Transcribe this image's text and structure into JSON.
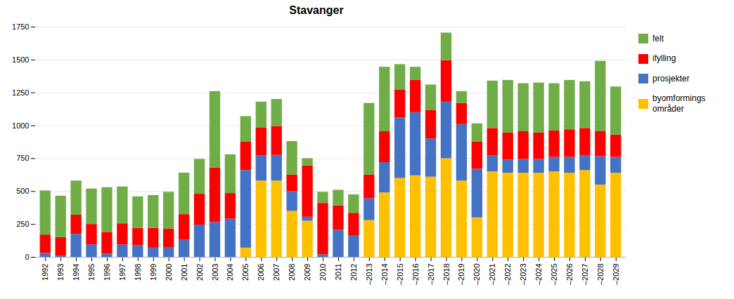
{
  "chart_data": {
    "type": "bar",
    "title": "Stavanger",
    "stacked": true,
    "grid": true,
    "legend": "right",
    "categories": [
      "1992",
      "1993",
      "1994",
      "1995",
      "1996",
      "1997",
      "1998",
      "1999",
      "2000",
      "2001",
      "2002",
      "2003",
      "2004",
      "2005",
      "2006",
      "2007",
      "2008",
      "2009",
      "2010",
      "2011",
      "2012",
      "‒2013",
      "‒2014",
      "‒2015",
      "‒2016",
      "‒2017",
      "‒2018",
      "‒2019",
      "‒2020",
      "‒2021",
      "‒2022",
      "‒2023",
      "‒2024",
      "‒2025",
      "‒2026",
      "‒2027",
      "‒2028",
      "‒2029"
    ],
    "series": [
      {
        "name": "byomformings\nområder",
        "color": "#FFC000",
        "values": [
          0,
          0,
          0,
          0,
          0,
          0,
          0,
          0,
          0,
          0,
          0,
          0,
          0,
          70,
          580,
          580,
          350,
          275,
          0,
          0,
          0,
          280,
          490,
          600,
          620,
          610,
          750,
          580,
          300,
          650,
          640,
          640,
          640,
          650,
          640,
          660,
          550,
          640
        ]
      },
      {
        "name": "prosjekter",
        "color": "#4472C4",
        "values": [
          30,
          10,
          175,
          95,
          25,
          95,
          90,
          70,
          75,
          130,
          245,
          265,
          290,
          590,
          190,
          195,
          150,
          30,
          20,
          205,
          165,
          165,
          230,
          460,
          480,
          290,
          430,
          430,
          370,
          120,
          100,
          105,
          105,
          110,
          120,
          110,
          215,
          120
        ]
      },
      {
        "name": "ifylling",
        "color": "#FF0000",
        "values": [
          140,
          140,
          145,
          155,
          165,
          160,
          130,
          150,
          140,
          195,
          235,
          415,
          195,
          215,
          215,
          220,
          125,
          390,
          390,
          185,
          170,
          180,
          235,
          210,
          245,
          215,
          315,
          160,
          205,
          210,
          205,
          210,
          200,
          200,
          210,
          210,
          190,
          170
        ]
      },
      {
        "name": "felt",
        "color": "#70AD47",
        "values": [
          335,
          315,
          260,
          270,
          340,
          280,
          240,
          250,
          280,
          315,
          265,
          580,
          295,
          195,
          195,
          205,
          255,
          55,
          85,
          120,
          140,
          545,
          490,
          195,
          100,
          195,
          210,
          90,
          140,
          360,
          400,
          365,
          380,
          360,
          375,
          355,
          535,
          365
        ]
      }
    ],
    "ylim": [
      0,
      1750
    ],
    "yticks": [
      0,
      250,
      500,
      750,
      1000,
      1250,
      1500,
      1750
    ]
  }
}
